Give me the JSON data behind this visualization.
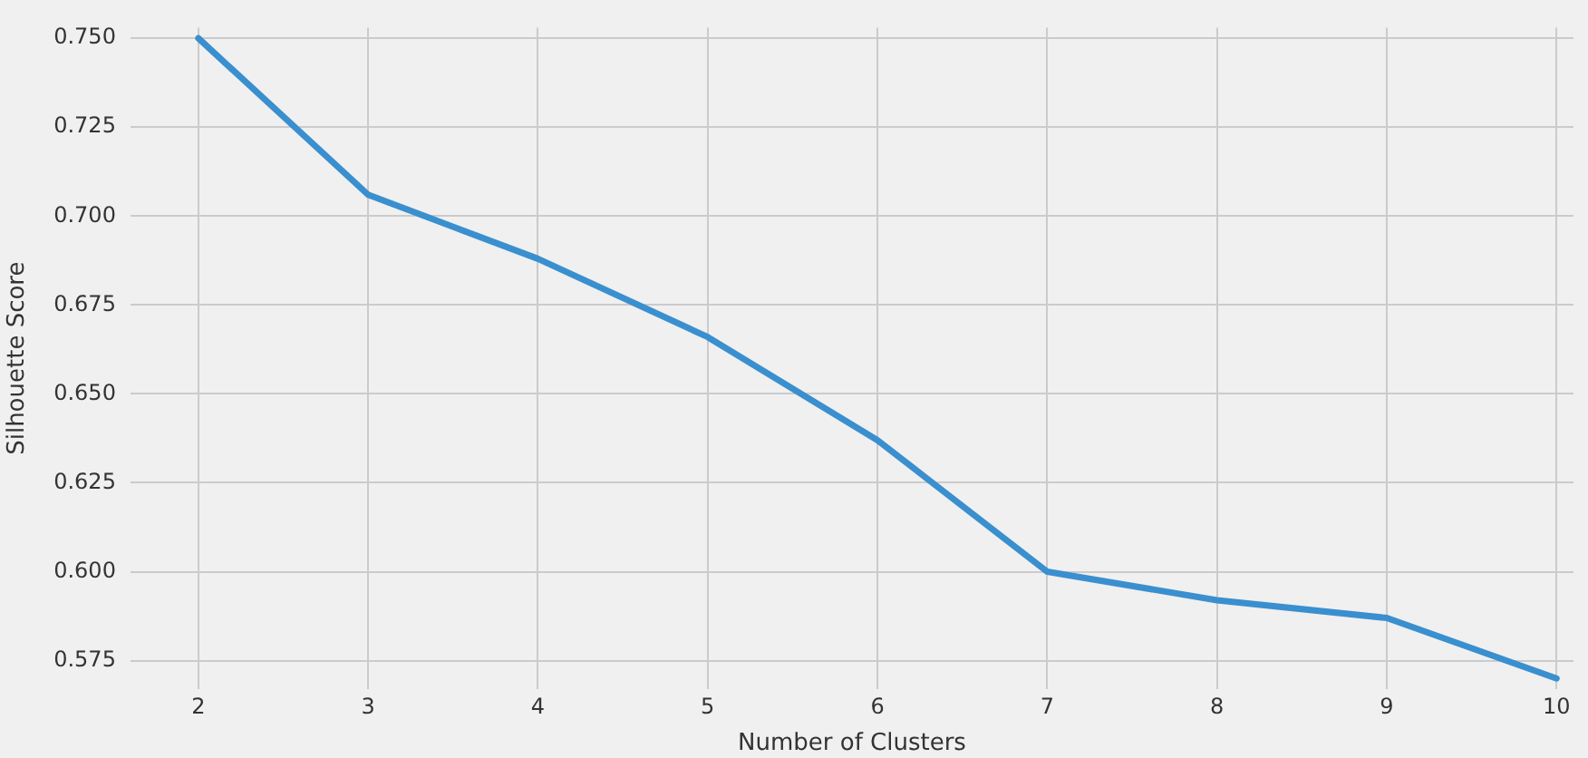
{
  "chart_data": {
    "type": "line",
    "xlabel": "Number of Clusters",
    "ylabel": "Silhouette Score",
    "x": [
      2,
      3,
      4,
      5,
      6,
      7,
      8,
      9,
      10
    ],
    "series": [
      {
        "color": "#3a8fcf",
        "values": [
          0.75,
          0.706,
          0.688,
          0.666,
          0.637,
          0.6,
          0.592,
          0.587,
          0.57
        ]
      }
    ],
    "xlim": [
      1.6,
      10.1
    ],
    "xticks": [
      2,
      3,
      4,
      5,
      6,
      7,
      8,
      9,
      10
    ],
    "ylim": [
      0.567,
      0.753
    ],
    "yticks": [
      {
        "value": 0.575,
        "label": "0.575"
      },
      {
        "value": 0.6,
        "label": "0.600"
      },
      {
        "value": 0.625,
        "label": "0.625"
      },
      {
        "value": 0.65,
        "label": "0.650"
      },
      {
        "value": 0.675,
        "label": "0.675"
      },
      {
        "value": 0.7,
        "label": "0.700"
      },
      {
        "value": 0.725,
        "label": "0.725"
      },
      {
        "value": 0.75,
        "label": "0.750"
      }
    ],
    "grid": true,
    "legend": false,
    "marker": "none",
    "line_style": "solid"
  }
}
